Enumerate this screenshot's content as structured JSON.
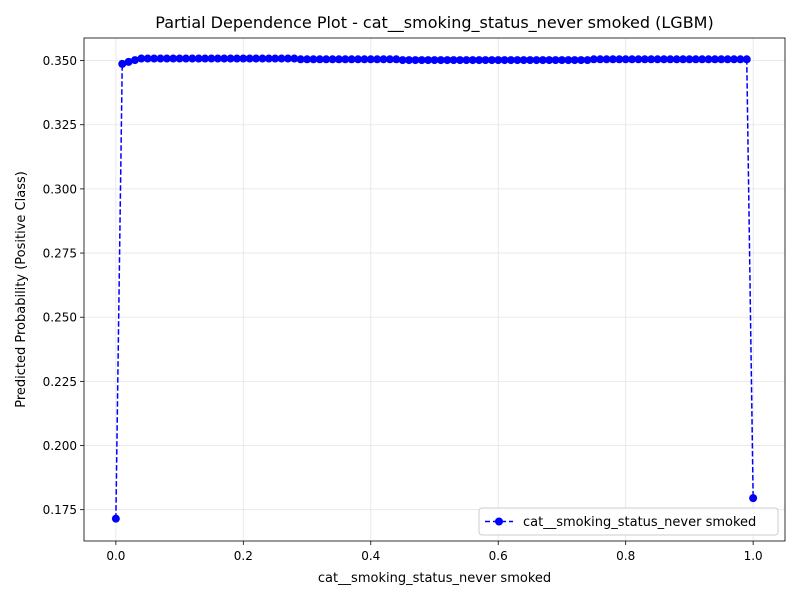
{
  "chart_data": {
    "type": "line",
    "title": "Partial Dependence Plot - cat__smoking_status_never smoked (LGBM)",
    "xlabel": "cat__smoking_status_never smoked",
    "ylabel": "Predicted Probability (Positive Class)",
    "xlim": [
      -0.05,
      1.05
    ],
    "ylim": [
      0.1628,
      0.3588
    ],
    "xticks": [
      0.0,
      0.2,
      0.4,
      0.6,
      0.8,
      1.0
    ],
    "xtick_labels": [
      "0.0",
      "0.2",
      "0.4",
      "0.6",
      "0.8",
      "1.0"
    ],
    "yticks": [
      0.175,
      0.2,
      0.225,
      0.25,
      0.275,
      0.3,
      0.325,
      0.35
    ],
    "ytick_labels": [
      "0.175",
      "0.200",
      "0.225",
      "0.250",
      "0.275",
      "0.300",
      "0.325",
      "0.350"
    ],
    "grid": true,
    "legend_position": "lower-right",
    "series": [
      {
        "name": "cat__smoking_status_never smoked",
        "color": "#0000ff",
        "linestyle": "dashed",
        "marker": "circle",
        "x": [
          0.0,
          0.01,
          0.02,
          0.03,
          0.04,
          0.05,
          0.06,
          0.07,
          0.08,
          0.09,
          0.1,
          0.11,
          0.12,
          0.13,
          0.14,
          0.15,
          0.16,
          0.17,
          0.18,
          0.19,
          0.2,
          0.21,
          0.22,
          0.23,
          0.24,
          0.25,
          0.26,
          0.27,
          0.28,
          0.29,
          0.3,
          0.31,
          0.32,
          0.33,
          0.34,
          0.35,
          0.36,
          0.37,
          0.38,
          0.39,
          0.4,
          0.41,
          0.42,
          0.43,
          0.44,
          0.45,
          0.46,
          0.47,
          0.48,
          0.49,
          0.5,
          0.51,
          0.52,
          0.53,
          0.54,
          0.55,
          0.56,
          0.57,
          0.58,
          0.59,
          0.6,
          0.61,
          0.62,
          0.63,
          0.64,
          0.65,
          0.66,
          0.67,
          0.68,
          0.69,
          0.7,
          0.71,
          0.72,
          0.73,
          0.74,
          0.75,
          0.76,
          0.77,
          0.78,
          0.79,
          0.8,
          0.81,
          0.82,
          0.83,
          0.84,
          0.85,
          0.86,
          0.87,
          0.88,
          0.89,
          0.9,
          0.91,
          0.92,
          0.93,
          0.94,
          0.95,
          0.96,
          0.97,
          0.98,
          0.99,
          1.0
        ],
        "values": [
          0.1715,
          0.3487,
          0.3495,
          0.3502,
          0.3508,
          0.3508,
          0.3508,
          0.3508,
          0.3508,
          0.3508,
          0.3508,
          0.3508,
          0.3508,
          0.3508,
          0.3508,
          0.3508,
          0.3508,
          0.3508,
          0.3508,
          0.3508,
          0.3508,
          0.3508,
          0.3508,
          0.3508,
          0.3508,
          0.3508,
          0.3508,
          0.3508,
          0.3508,
          0.3505,
          0.3505,
          0.3505,
          0.3505,
          0.3505,
          0.3505,
          0.3505,
          0.3505,
          0.3505,
          0.3505,
          0.3505,
          0.3505,
          0.3505,
          0.3505,
          0.3505,
          0.3505,
          0.3502,
          0.3502,
          0.3502,
          0.3502,
          0.3502,
          0.3502,
          0.3502,
          0.3502,
          0.3502,
          0.3502,
          0.3502,
          0.3502,
          0.3502,
          0.3502,
          0.3502,
          0.3502,
          0.3502,
          0.3502,
          0.3502,
          0.3502,
          0.3502,
          0.3502,
          0.3502,
          0.3502,
          0.3502,
          0.3502,
          0.3502,
          0.3502,
          0.3502,
          0.3502,
          0.3505,
          0.3505,
          0.3505,
          0.3505,
          0.3505,
          0.3505,
          0.3505,
          0.3505,
          0.3505,
          0.3505,
          0.3505,
          0.3505,
          0.3505,
          0.3505,
          0.3505,
          0.3505,
          0.3505,
          0.3505,
          0.3505,
          0.3505,
          0.3505,
          0.3505,
          0.3505,
          0.3505,
          0.3505,
          0.1795
        ]
      }
    ]
  }
}
